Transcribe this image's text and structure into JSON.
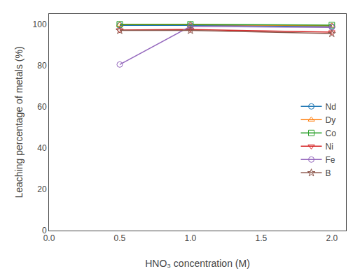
{
  "chart_data": {
    "type": "line",
    "x": [
      0.5,
      1.0,
      2.0
    ],
    "series": [
      {
        "name": "Nd",
        "values": [
          99.5,
          99.5,
          99.0
        ],
        "marker": "circle"
      },
      {
        "name": "Dy",
        "values": [
          99.8,
          99.8,
          99.3
        ],
        "marker": "triangle-up"
      },
      {
        "name": "Co",
        "values": [
          100.0,
          100.0,
          99.6
        ],
        "marker": "square"
      },
      {
        "name": "Ni",
        "values": [
          97.2,
          97.5,
          96.2
        ],
        "marker": "triangle-down"
      },
      {
        "name": "Fe",
        "values": [
          80.5,
          99.0,
          98.5
        ],
        "marker": "circle"
      },
      {
        "name": "B",
        "values": [
          97.0,
          97.0,
          95.5
        ],
        "marker": "star"
      }
    ],
    "xlabel": "HNO₃ concentration (M)",
    "ylabel": "Leaching percentage of metals (%)",
    "xlim": [
      0.0,
      2.1
    ],
    "ylim": [
      0,
      105
    ],
    "xticks": [
      {
        "value": 0,
        "label": "0.0"
      },
      0.5,
      {
        "value": 1,
        "label": "1.0"
      },
      1.5,
      {
        "value": 2,
        "label": "2.0"
      }
    ],
    "yticks": [
      0,
      20,
      40,
      60,
      80,
      100
    ],
    "grid": false,
    "legend": "right"
  }
}
